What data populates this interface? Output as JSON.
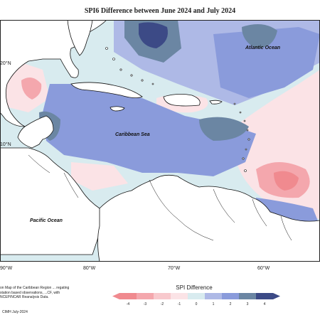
{
  "title": "SPI6 Difference between June 2024 and July 2024",
  "ocean_labels": {
    "atlantic": "Atlantic Ocean",
    "caribbean": "Caribbean Sea",
    "pacific": "Pacific Ocean"
  },
  "longitude_labels": [
    "90°W",
    "80°W",
    "70°W",
    "60°W"
  ],
  "latitude_labels": [
    "20°N",
    "10°N"
  ],
  "source_note": "on Map of the Caribbean Region ... regating station based observations, ...CF, with NCEP/NCAR Reanalysis Data.",
  "credit": "CIMH July-2024",
  "legend": {
    "title": "SPI Difference",
    "ticks": [
      "-4",
      "-3",
      "-2",
      "-1",
      "0",
      "1",
      "2",
      "3",
      "4"
    ],
    "colors": [
      "#f08a8f",
      "#f4a7ad",
      "#f8c9cd",
      "#fbe3e6",
      "#d8ebef",
      "#aeb9e6",
      "#8a9bdb",
      "#6b86a3",
      "#3c4a86"
    ]
  },
  "map_colors": {
    "land": "#ffffff",
    "coast": "#111111",
    "neutral": "#d8ebef",
    "light_pink": "#fbe3e6",
    "pink": "#f4a7ad",
    "red": "#f08a8f",
    "light_blue": "#aeb9e6",
    "blue": "#8a9bdb",
    "slate": "#6b86a3",
    "navy": "#3c4a86"
  }
}
